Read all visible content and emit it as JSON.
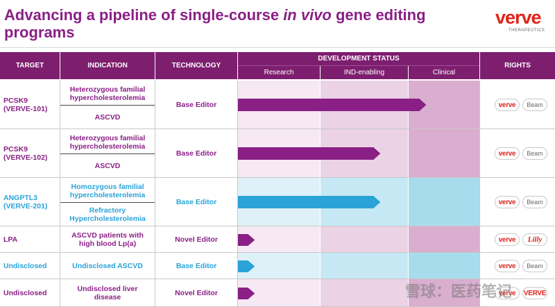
{
  "title": {
    "part1": "Advancing a pipeline of single-course ",
    "italic": "in vivo",
    "part2": " gene editing programs"
  },
  "logo": {
    "word": "verve",
    "sub": "THERAPEUTICS"
  },
  "headers": {
    "target": "TARGET",
    "indication": "INDICATION",
    "technology": "TECHNOLOGY",
    "development_status": "DEVELOPMENT STATUS",
    "research": "Research",
    "ind_enabling": "IND-enabling",
    "clinical": "Clinical",
    "rights": "RIGHTS"
  },
  "rows": [
    {
      "target": "PCSK9\n(VERVE-101)",
      "indication_1": "Heterozygous familial hypercholesterolemia",
      "indication_2": "ASCVD",
      "technology": "Base Editor",
      "stage_progress": 0.78,
      "color": "#8a1f86",
      "rights": [
        "verve",
        "Beam"
      ]
    },
    {
      "target": "PCSK9\n(VERVE-102)",
      "indication_1": "Heterozygous familial hypercholesterolemia",
      "indication_2": "ASCVD",
      "technology": "Base Editor",
      "stage_progress": 0.59,
      "color": "#8a1f86",
      "rights": [
        "verve",
        "Beam"
      ]
    },
    {
      "target": "ANGPTL3\n(VERVE-201)",
      "indication_1": "Homozygous familial hypercholesterolemia",
      "indication_2": "Refractory Hypercholesterolemia",
      "technology": "Base Editor",
      "stage_progress": 0.59,
      "color": "#2aa3d8",
      "rights": [
        "verve",
        "Beam"
      ]
    },
    {
      "target": "LPA",
      "indication_1": "ASCVD patients with high blood Lp(a)",
      "indication_2": "",
      "technology": "Novel Editor",
      "stage_progress": 0.07,
      "color": "#8a1f86",
      "rights": [
        "verve",
        "Lilly"
      ]
    },
    {
      "target": "Undisclosed",
      "indication_1": "Undisclosed ASCVD",
      "indication_2": "",
      "technology": "Base Editor",
      "stage_progress": 0.07,
      "color": "#2aa3d8",
      "rights": [
        "verve",
        "Beam"
      ]
    },
    {
      "target": "Undisclosed",
      "indication_1": "Undisclosed liver disease",
      "indication_2": "",
      "technology": "Novel Editor",
      "stage_progress": 0.07,
      "color": "#8a1f86",
      "rights": [
        "verve",
        "VERVE"
      ]
    }
  ],
  "watermark": "雪球：医药笔记"
}
